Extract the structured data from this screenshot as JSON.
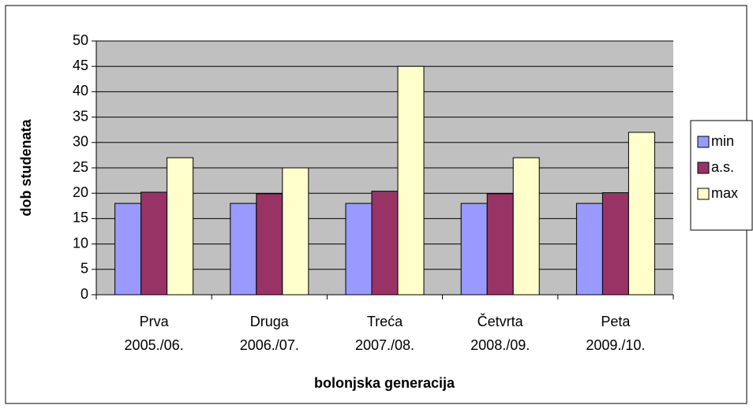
{
  "chart_data": {
    "type": "bar",
    "y_label": "dob studenata",
    "x_label": "bolonjska generacija",
    "categories": [
      [
        "Prva",
        "2005./06."
      ],
      [
        "Druga",
        "2006./07."
      ],
      [
        "Treća",
        "2007./08."
      ],
      [
        "Četvrta",
        "2008./09."
      ],
      [
        "Peta",
        "2009./10."
      ]
    ],
    "series": [
      {
        "name": "min",
        "color": "#9999ff",
        "values": [
          18,
          18,
          18,
          18,
          18
        ]
      },
      {
        "name": "a.s.",
        "color": "#993366",
        "values": [
          20.2,
          19.9,
          20.4,
          19.9,
          20.1
        ]
      },
      {
        "name": "max",
        "color": "#ffffcc",
        "values": [
          27,
          25,
          45,
          27,
          32
        ]
      }
    ],
    "ylim": [
      0,
      50
    ],
    "yticks": [
      0,
      5,
      10,
      15,
      20,
      25,
      30,
      35,
      40,
      45,
      50
    ],
    "grid": true,
    "legend": "right"
  }
}
